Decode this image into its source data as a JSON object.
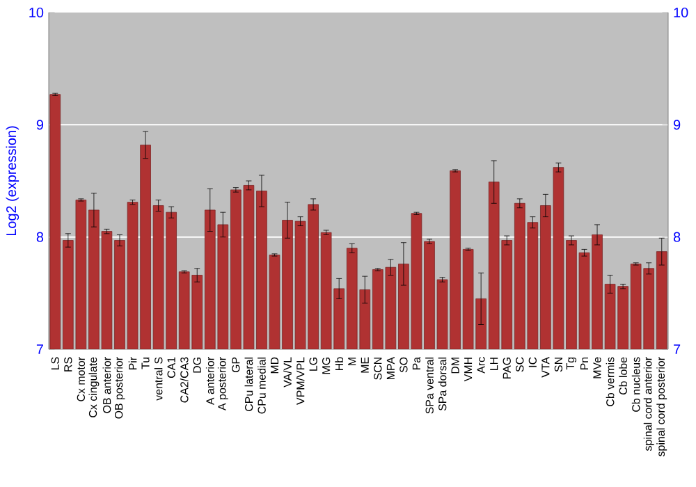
{
  "chart_data": {
    "type": "bar",
    "ylabel": "Log2 (expression)",
    "categories": [
      "LS",
      "RS",
      "Cx motor",
      "Cx cingulate",
      "OB anterior",
      "OB posterior",
      "Pir",
      "Tu",
      "ventral S",
      "CA1",
      "CA2/CA3",
      "DG",
      "A anterior",
      "A posterior",
      "GP",
      "CPu lateral",
      "CPu medial",
      "MD",
      "VA/VL",
      "VPM/VPL",
      "LG",
      "MG",
      "Hb",
      "M",
      "ME",
      "SCN",
      "MPA",
      "SO",
      "Pa",
      "SPa ventral",
      "SPa dorsal",
      "DM",
      "VMH",
      "Arc",
      "LH",
      "PAG",
      "SC",
      "IC",
      "VTA",
      "SN",
      "Tg",
      "Pn",
      "MVe",
      "Cb vermis",
      "Cb lobe",
      "Cb nucleus",
      "spinal cord anterior",
      "spinal cord posterior"
    ],
    "values": [
      9.27,
      7.97,
      8.33,
      8.24,
      8.05,
      7.97,
      8.31,
      8.82,
      8.28,
      8.22,
      7.69,
      7.66,
      8.24,
      8.11,
      8.42,
      8.46,
      8.41,
      7.84,
      8.15,
      8.14,
      8.29,
      8.04,
      7.54,
      7.9,
      7.53,
      7.71,
      7.73,
      7.76,
      8.21,
      7.96,
      7.62,
      8.59,
      7.89,
      7.45,
      8.49,
      7.97,
      8.3,
      8.13,
      8.28,
      8.62,
      7.97,
      7.86,
      8.02,
      7.58,
      7.56,
      7.76,
      7.72,
      7.87
    ],
    "errors": [
      0.01,
      0.06,
      0.01,
      0.15,
      0.02,
      0.05,
      0.02,
      0.12,
      0.05,
      0.05,
      0.01,
      0.06,
      0.19,
      0.11,
      0.02,
      0.04,
      0.14,
      0.01,
      0.16,
      0.04,
      0.05,
      0.02,
      0.09,
      0.04,
      0.12,
      0.01,
      0.07,
      0.19,
      0.01,
      0.02,
      0.02,
      0.01,
      0.01,
      0.23,
      0.19,
      0.04,
      0.04,
      0.05,
      0.1,
      0.04,
      0.04,
      0.03,
      0.09,
      0.08,
      0.02,
      0.01,
      0.05,
      0.12
    ],
    "color": "#b03232",
    "ylim": [
      7,
      10
    ],
    "yticks": [
      7,
      8,
      9,
      10
    ],
    "y2lim": [
      7,
      10
    ],
    "y2ticks": [
      7,
      8,
      9,
      10
    ],
    "grid": "y"
  }
}
